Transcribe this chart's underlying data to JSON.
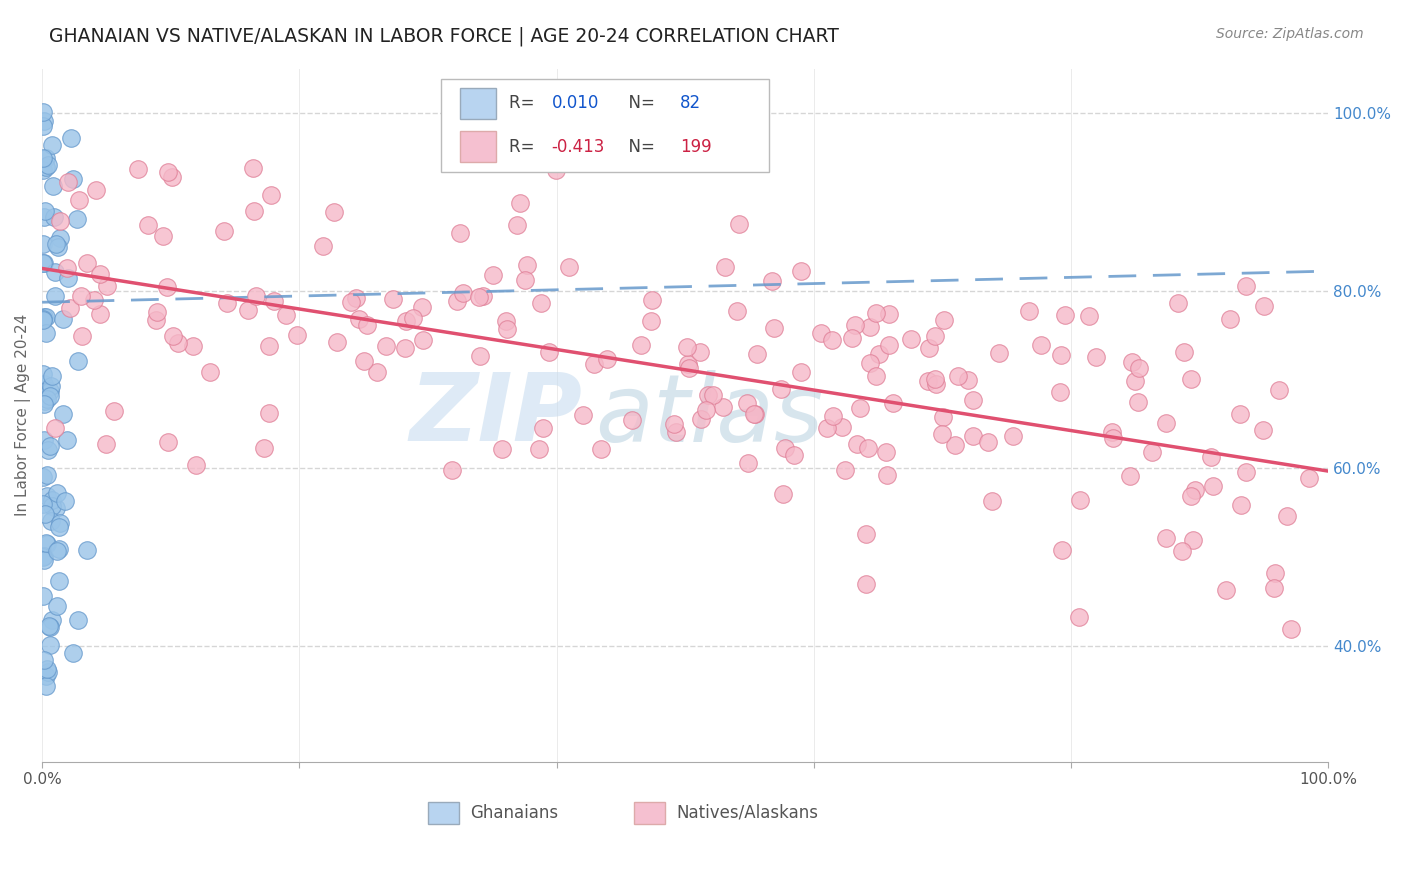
{
  "title": "GHANAIAN VS NATIVE/ALASKAN IN LABOR FORCE | AGE 20-24 CORRELATION CHART",
  "source_text": "Source: ZipAtlas.com",
  "ylabel": "In Labor Force | Age 20-24",
  "xlim": [
    0.0,
    1.0
  ],
  "ylim": [
    0.27,
    1.05
  ],
  "ghanaian_color": "#9ac4e8",
  "native_color": "#f5b8c8",
  "ghanaian_edge": "#6699cc",
  "native_edge": "#e08098",
  "R_ghanaian": 0.01,
  "N_ghanaian": 82,
  "R_native": -0.413,
  "N_native": 199,
  "trend_ghanaian_color": "#6699cc",
  "trend_native_color": "#e05070",
  "trend_ghanaian_y0": 0.787,
  "trend_ghanaian_y1": 0.822,
  "trend_native_y0": 0.825,
  "trend_native_y1": 0.597,
  "watermark_zip": "ZIP",
  "watermark_atlas": "atlas",
  "background_color": "#ffffff",
  "grid_color": "#cccccc",
  "title_color": "#333333",
  "right_tick_color": "#4488cc",
  "legend_box_color_blue": "#b8d4f0",
  "legend_box_color_pink": "#f5c0d0",
  "R_color_blue": "#1155cc",
  "R_color_pink": "#cc2244",
  "N_color_blue": "#1155cc",
  "N_color_pink": "#cc2244"
}
